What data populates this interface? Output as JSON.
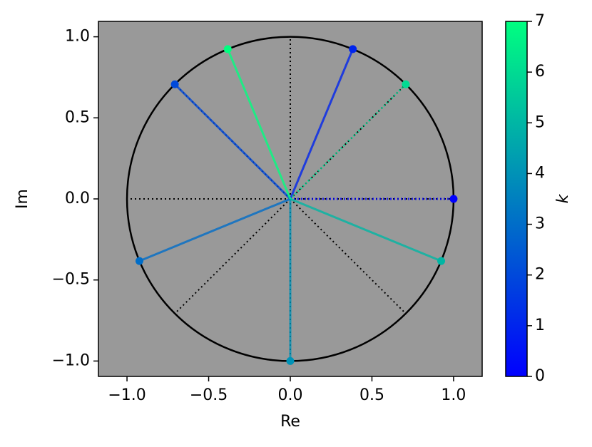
{
  "chart_data": {
    "type": "scatter",
    "x_label": "Re",
    "y_label": "Im",
    "x": [
      1,
      0.383,
      -0.707,
      -0.924,
      0,
      0.924,
      0.707,
      -0.383
    ],
    "y": [
      0,
      0.924,
      0.707,
      -0.383,
      -1,
      -0.383,
      0.707,
      0.924
    ],
    "c": [
      0,
      1,
      2,
      3,
      4,
      5,
      6,
      7
    ],
    "linestyles": [
      "dotted",
      "solid",
      "solid",
      "solid",
      "solid",
      "solid",
      "dotted",
      "solid"
    ],
    "colormap": "winter",
    "xlim": [
      -1.175,
      1.175
    ],
    "ylim": [
      -1.095,
      1.095
    ],
    "xticks": [
      {
        "value": -1,
        "label": "−1.0"
      },
      {
        "value": -0.5,
        "label": "−0.5"
      },
      {
        "value": 0,
        "label": "0.0"
      },
      {
        "value": 0.5,
        "label": "0.5"
      },
      {
        "value": 1,
        "label": "1.0"
      }
    ],
    "yticks": [
      {
        "value": -1,
        "label": "−1.0"
      },
      {
        "value": -0.5,
        "label": "−0.5"
      },
      {
        "value": 0,
        "label": "0.0"
      },
      {
        "value": 0.5,
        "label": "0.5"
      },
      {
        "value": 1,
        "label": "1.0"
      }
    ],
    "colorbar": {
      "label": "k",
      "clim": [
        0,
        7
      ],
      "ticks": [
        0,
        1,
        2,
        3,
        4,
        5,
        6,
        7
      ]
    },
    "background": "#999999"
  }
}
